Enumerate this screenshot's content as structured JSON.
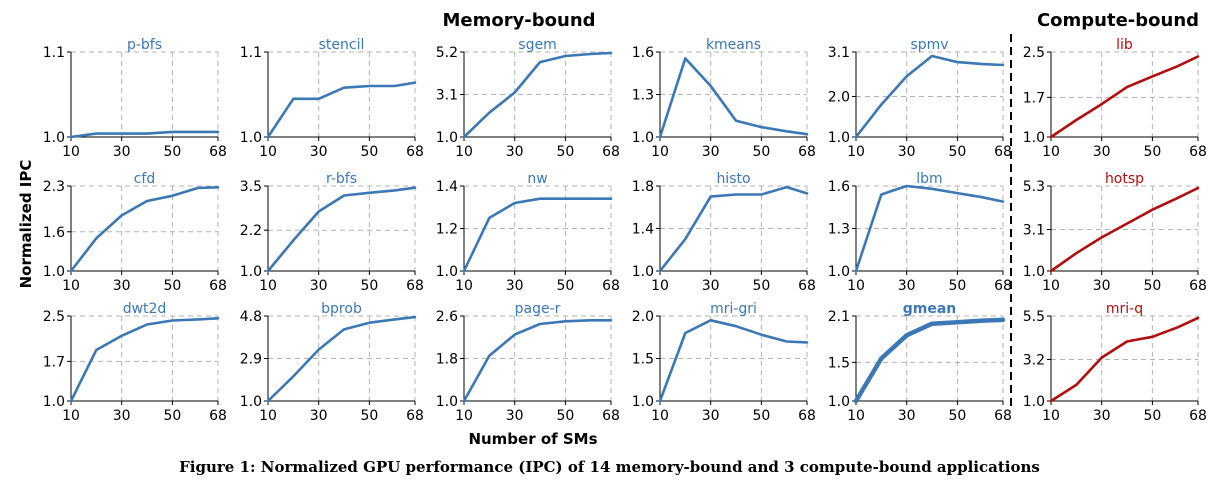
{
  "figure": {
    "group_titles": {
      "memory": "Memory-bound",
      "compute": "Compute-bound"
    },
    "xlabel": "Number of SMs",
    "ylabel": "Normalized IPC",
    "caption": "Figure 1: Normalized GPU performance (IPC) of 14 memory-bound and 3 compute-bound applications",
    "colors": {
      "memory": "#3b78b5",
      "compute": "#b20e0e"
    }
  },
  "chart_data": [
    {
      "type": "line",
      "title": "p-bfs",
      "group": "memory",
      "x": [
        10,
        20,
        30,
        40,
        50,
        60,
        68
      ],
      "y": [
        1.0,
        1.004,
        1.004,
        1.004,
        1.006,
        1.006,
        1.006
      ],
      "yticks": [
        "1.0",
        "1.1"
      ],
      "ylim": [
        1.0,
        1.1
      ],
      "xticks": [
        10,
        30,
        50,
        68
      ]
    },
    {
      "type": "line",
      "title": "stencil",
      "group": "memory",
      "x": [
        10,
        20,
        30,
        40,
        50,
        60,
        68
      ],
      "y": [
        1.0,
        1.045,
        1.045,
        1.058,
        1.06,
        1.06,
        1.064
      ],
      "yticks": [
        "1.0",
        "1.1"
      ],
      "ylim": [
        1.0,
        1.1
      ],
      "xticks": [
        10,
        30,
        50,
        68
      ]
    },
    {
      "type": "line",
      "title": "sgem",
      "group": "memory",
      "x": [
        10,
        20,
        30,
        40,
        50,
        60,
        68
      ],
      "y": [
        1.0,
        2.2,
        3.2,
        4.7,
        5.0,
        5.1,
        5.15
      ],
      "yticks": [
        "1.0",
        "3.1",
        "5.2"
      ],
      "ylim": [
        1.0,
        5.2
      ],
      "xticks": [
        10,
        30,
        50,
        68
      ]
    },
    {
      "type": "line",
      "title": "kmeans",
      "group": "memory",
      "x": [
        10,
        20,
        30,
        40,
        50,
        60,
        68
      ],
      "y": [
        1.0,
        1.555,
        1.36,
        1.115,
        1.07,
        1.04,
        1.02
      ],
      "yticks": [
        "1.0",
        "1.3",
        "1.6"
      ],
      "ylim": [
        1.0,
        1.6
      ],
      "xticks": [
        10,
        30,
        50,
        68
      ]
    },
    {
      "type": "line",
      "title": "spmv",
      "group": "memory",
      "x": [
        10,
        20,
        30,
        40,
        50,
        60,
        68
      ],
      "y": [
        1.0,
        1.8,
        2.5,
        3.0,
        2.85,
        2.8,
        2.78
      ],
      "yticks": [
        "1.0",
        "2.0",
        "3.1"
      ],
      "ylim": [
        1.0,
        3.1
      ],
      "xticks": [
        10,
        30,
        50,
        68
      ]
    },
    {
      "type": "line",
      "title": "lib",
      "group": "compute",
      "x": [
        10,
        20,
        30,
        40,
        50,
        60,
        68
      ],
      "y": [
        1.0,
        1.3,
        1.58,
        1.88,
        2.07,
        2.25,
        2.42
      ],
      "yticks": [
        "1.0",
        "1.7",
        "2.5"
      ],
      "ylim": [
        1.0,
        2.5
      ],
      "xticks": [
        10,
        30,
        50,
        68
      ]
    },
    {
      "type": "line",
      "title": "cfd",
      "group": "memory",
      "x": [
        10,
        20,
        30,
        40,
        50,
        60,
        68
      ],
      "y": [
        1.0,
        1.5,
        1.85,
        2.07,
        2.15,
        2.27,
        2.28
      ],
      "yticks": [
        "1.0",
        "1.6",
        "2.3"
      ],
      "ylim": [
        1.0,
        2.3
      ],
      "xticks": [
        10,
        30,
        50,
        68
      ]
    },
    {
      "type": "line",
      "title": "r-bfs",
      "group": "memory",
      "x": [
        10,
        20,
        30,
        40,
        50,
        60,
        68
      ],
      "y": [
        1.0,
        1.9,
        2.75,
        3.22,
        3.3,
        3.37,
        3.45
      ],
      "yticks": [
        "1.0",
        "2.2",
        "3.5"
      ],
      "ylim": [
        1.0,
        3.5
      ],
      "xticks": [
        10,
        30,
        50,
        68
      ]
    },
    {
      "type": "line",
      "title": "nw",
      "group": "memory",
      "x": [
        10,
        20,
        30,
        40,
        50,
        60,
        68
      ],
      "y": [
        1.0,
        1.25,
        1.32,
        1.34,
        1.34,
        1.34,
        1.34
      ],
      "yticks": [
        "1.0",
        "1.2",
        "1.4"
      ],
      "ylim": [
        1.0,
        1.4
      ],
      "xticks": [
        10,
        30,
        50,
        68
      ]
    },
    {
      "type": "line",
      "title": "histo",
      "group": "memory",
      "x": [
        10,
        20,
        30,
        40,
        50,
        60,
        68
      ],
      "y": [
        1.0,
        1.3,
        1.7,
        1.72,
        1.72,
        1.79,
        1.73
      ],
      "yticks": [
        "1.0",
        "1.4",
        "1.8"
      ],
      "ylim": [
        1.0,
        1.8
      ],
      "xticks": [
        10,
        30,
        50,
        68
      ]
    },
    {
      "type": "line",
      "title": "lbm",
      "group": "memory",
      "x": [
        10,
        20,
        30,
        40,
        50,
        60,
        68
      ],
      "y": [
        1.0,
        1.54,
        1.6,
        1.58,
        1.55,
        1.52,
        1.49
      ],
      "yticks": [
        "1.0",
        "1.3",
        "1.6"
      ],
      "ylim": [
        1.0,
        1.6
      ],
      "xticks": [
        10,
        30,
        50,
        68
      ]
    },
    {
      "type": "line",
      "title": "hotsp",
      "group": "compute",
      "x": [
        10,
        20,
        30,
        40,
        50,
        60,
        68
      ],
      "y": [
        1.0,
        1.9,
        2.7,
        3.4,
        4.1,
        4.7,
        5.2
      ],
      "yticks": [
        "1.0",
        "3.1",
        "5.3"
      ],
      "ylim": [
        1.0,
        5.3
      ],
      "xticks": [
        10,
        30,
        50,
        68
      ]
    },
    {
      "type": "line",
      "title": "dwt2d",
      "group": "memory",
      "x": [
        10,
        20,
        30,
        40,
        50,
        60,
        68
      ],
      "y": [
        1.0,
        1.9,
        2.15,
        2.35,
        2.42,
        2.44,
        2.46
      ],
      "yticks": [
        "1.0",
        "1.7",
        "2.5"
      ],
      "ylim": [
        1.0,
        2.5
      ],
      "xticks": [
        10,
        30,
        50,
        68
      ]
    },
    {
      "type": "line",
      "title": "bprob",
      "group": "memory",
      "x": [
        10,
        20,
        30,
        40,
        50,
        60,
        68
      ],
      "y": [
        1.0,
        2.1,
        3.3,
        4.2,
        4.5,
        4.65,
        4.75
      ],
      "yticks": [
        "1.0",
        "2.9",
        "4.8"
      ],
      "ylim": [
        1.0,
        4.8
      ],
      "xticks": [
        10,
        30,
        50,
        68
      ]
    },
    {
      "type": "line",
      "title": "page-r",
      "group": "memory",
      "x": [
        10,
        20,
        30,
        40,
        50,
        60,
        68
      ],
      "y": [
        1.0,
        1.85,
        2.25,
        2.45,
        2.5,
        2.52,
        2.52
      ],
      "yticks": [
        "1.0",
        "1.8",
        "2.6"
      ],
      "ylim": [
        1.0,
        2.6
      ],
      "xticks": [
        10,
        30,
        50,
        68
      ]
    },
    {
      "type": "line",
      "title": "mri-gri",
      "group": "memory",
      "x": [
        10,
        20,
        30,
        40,
        50,
        60,
        68
      ],
      "y": [
        1.0,
        1.8,
        1.95,
        1.88,
        1.78,
        1.7,
        1.69
      ],
      "yticks": [
        "1.0",
        "1.5",
        "2.0"
      ],
      "ylim": [
        1.0,
        2.0
      ],
      "xticks": [
        10,
        30,
        50,
        68
      ]
    },
    {
      "type": "line",
      "title": "gmean",
      "group": "memory",
      "bold": true,
      "x": [
        10,
        20,
        30,
        40,
        50,
        60,
        68
      ],
      "y": [
        1.0,
        1.55,
        1.85,
        2.0,
        2.02,
        2.04,
        2.05
      ],
      "yticks": [
        "1.0",
        "1.5",
        "2.1"
      ],
      "ylim": [
        1.0,
        2.1
      ],
      "xticks": [
        10,
        30,
        50,
        68
      ]
    },
    {
      "type": "line",
      "title": "mri-q",
      "group": "compute",
      "x": [
        10,
        20,
        30,
        40,
        50,
        60,
        68
      ],
      "y": [
        1.0,
        1.85,
        3.3,
        4.15,
        4.4,
        4.9,
        5.4
      ],
      "yticks": [
        "1.0",
        "3.2",
        "5.5"
      ],
      "ylim": [
        1.0,
        5.5
      ],
      "xticks": [
        10,
        30,
        50,
        68
      ]
    }
  ]
}
